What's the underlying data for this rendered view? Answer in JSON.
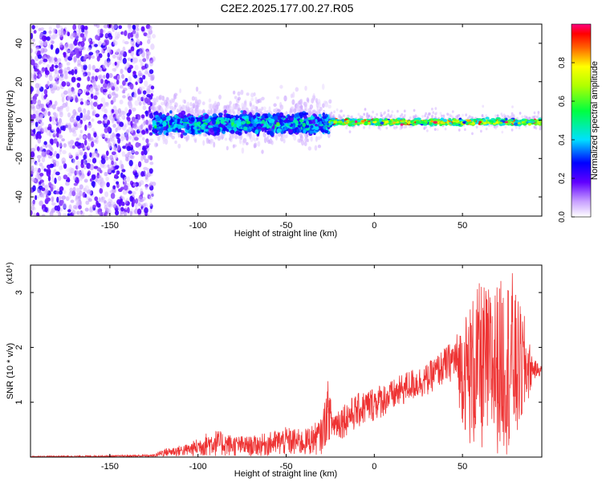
{
  "title": "C2E2.2025.177.00.27.R05",
  "chart_data": [
    {
      "type": "heatmap",
      "xlabel": "Height of straight line (km)",
      "ylabel": "Frequency (Hz)",
      "xlim": [
        -195,
        95
      ],
      "ylim": [
        -50,
        50
      ],
      "x_ticks": [
        -150,
        -100,
        -50,
        0,
        50
      ],
      "y_ticks": [
        -40,
        -20,
        0,
        20,
        40
      ],
      "grid": false,
      "colorbar": {
        "label": "Normalized spectral amplitude",
        "range": [
          0,
          1
        ],
        "ticks": [
          "0.0",
          "0.2",
          "0.4",
          "0.6",
          "0.8"
        ]
      },
      "regions": [
        {
          "x_from": -195,
          "x_to": -125,
          "freq_spread_hz": 50,
          "amplitude": "0.05-0.25"
        },
        {
          "x_from": -125,
          "x_to": -25,
          "freq_spread_hz": 8,
          "amplitude": "0.1-0.5"
        },
        {
          "x_from": -25,
          "x_to": 95,
          "freq_spread_hz": 3,
          "amplitude": "0.5-1.0"
        }
      ]
    },
    {
      "type": "line",
      "xlabel": "Height of straight line (km)",
      "ylabel": "SNR (10 * v/v)",
      "scale_label": "(x10⁴)",
      "xlim": [
        -195,
        95
      ],
      "ylim": [
        0,
        3.5
      ],
      "x_ticks": [
        -150,
        -100,
        -50,
        0,
        50
      ],
      "y_ticks": [
        1,
        2,
        3
      ],
      "grid": false,
      "series_color": "#ee3333",
      "envelope": {
        "x": [
          -195,
          -150,
          -125,
          -120,
          -105,
          -95,
          -90,
          -80,
          -70,
          -60,
          -50,
          -40,
          -30,
          -26,
          -24,
          -20,
          -10,
          0,
          10,
          20,
          30,
          35,
          40,
          45,
          50,
          55,
          60,
          65,
          70,
          75,
          78,
          80,
          85,
          90,
          95
        ],
        "low": [
          0.0,
          0.0,
          0.0,
          0.01,
          0.01,
          0.01,
          0.01,
          0.01,
          0.01,
          0.01,
          0.01,
          0.01,
          0.05,
          0.3,
          0.3,
          0.3,
          0.5,
          0.65,
          0.8,
          1.0,
          1.1,
          1.25,
          1.3,
          1.4,
          0.6,
          0.05,
          0.05,
          0.05,
          0.05,
          0.05,
          0.05,
          0.1,
          0.6,
          1.4,
          1.5
        ],
        "high": [
          0.02,
          0.03,
          0.05,
          0.15,
          0.25,
          0.45,
          0.5,
          0.4,
          0.38,
          0.45,
          0.55,
          0.5,
          0.7,
          1.45,
          0.85,
          0.95,
          1.15,
          1.3,
          1.4,
          1.6,
          1.7,
          1.85,
          2.0,
          2.15,
          2.5,
          2.9,
          3.2,
          3.1,
          3.2,
          3.3,
          3.45,
          3.0,
          2.6,
          1.8,
          1.65
        ]
      }
    }
  ]
}
